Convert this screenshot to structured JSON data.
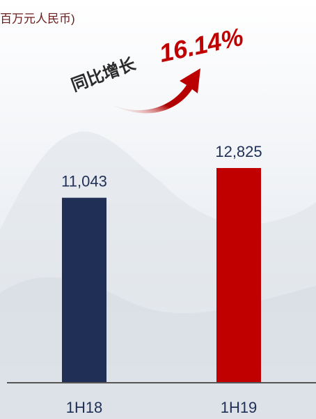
{
  "chart_data": {
    "type": "bar",
    "subtitle": "百万元人民币)",
    "annotation": {
      "text": "同比增长",
      "highlight": "16.14%"
    },
    "categories": [
      "1H18",
      "1H19"
    ],
    "values": [
      11043,
      12825
    ],
    "value_labels": [
      "11,043",
      "12,825"
    ],
    "colors": [
      "#1f2f56",
      "#c00000"
    ]
  }
}
